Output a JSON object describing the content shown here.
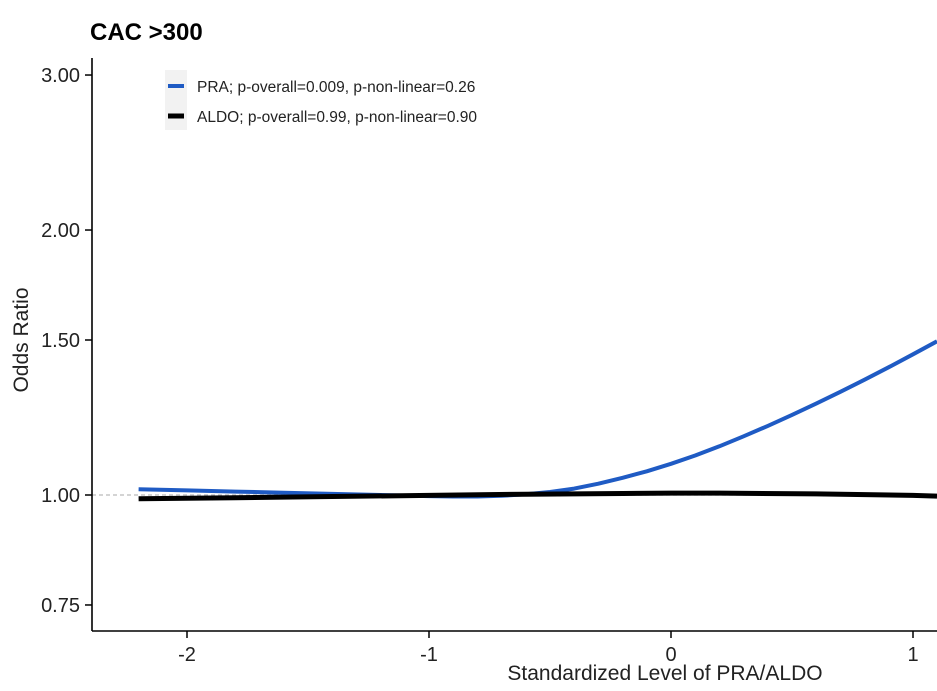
{
  "chart_data": {
    "type": "line",
    "title": "CAC >300",
    "xlabel": "Standardized Level of PRA/ALDO",
    "ylabel": "Odds Ratio",
    "y_scale": "log",
    "xlim": [
      -2.4,
      1.1
    ],
    "ylim": [
      0.72,
      3.1
    ],
    "x_ticks": [
      -2,
      -1,
      0,
      1
    ],
    "x_tick_labels": [
      "-2",
      "-1",
      "0",
      "1"
    ],
    "y_ticks": [
      0.75,
      1.0,
      1.5,
      2.0,
      3.0
    ],
    "y_tick_labels": [
      "0.75",
      "1.00",
      "1.50",
      "2.00",
      "3.00"
    ],
    "reference_line": {
      "y": 1.0,
      "style": "dashed",
      "color": "#bbbbbb"
    },
    "grid": false,
    "legend_position": "top-left",
    "series": [
      {
        "name": "PRA; p-overall=0.009, p-non-linear=0.26",
        "color": "#1f5bc4",
        "x": [
          -2.2,
          -2.0,
          -1.8,
          -1.6,
          -1.4,
          -1.2,
          -1.0,
          -0.9,
          -0.8,
          -0.7,
          -0.6,
          -0.5,
          -0.4,
          -0.3,
          -0.2,
          -0.1,
          0.0,
          0.1,
          0.2,
          0.3,
          0.4,
          0.5,
          0.6,
          0.7,
          0.8,
          0.9,
          1.0,
          1.1
        ],
        "y": [
          1.015,
          1.012,
          1.009,
          1.006,
          1.003,
          1.0,
          0.997,
          0.996,
          0.996,
          0.998,
          1.002,
          1.008,
          1.017,
          1.03,
          1.046,
          1.064,
          1.085,
          1.109,
          1.136,
          1.166,
          1.198,
          1.233,
          1.27,
          1.31,
          1.352,
          1.397,
          1.445,
          1.495
        ]
      },
      {
        "name": "ALDO; p-overall=0.99, p-non-linear=0.90",
        "color": "#000000",
        "x": [
          -2.2,
          -1.8,
          -1.4,
          -1.0,
          -0.6,
          -0.2,
          0.0,
          0.2,
          0.6,
          1.0,
          1.1
        ],
        "y": [
          0.99,
          0.993,
          0.996,
          0.999,
          1.002,
          1.004,
          1.005,
          1.005,
          1.003,
          0.999,
          0.997
        ]
      }
    ]
  }
}
